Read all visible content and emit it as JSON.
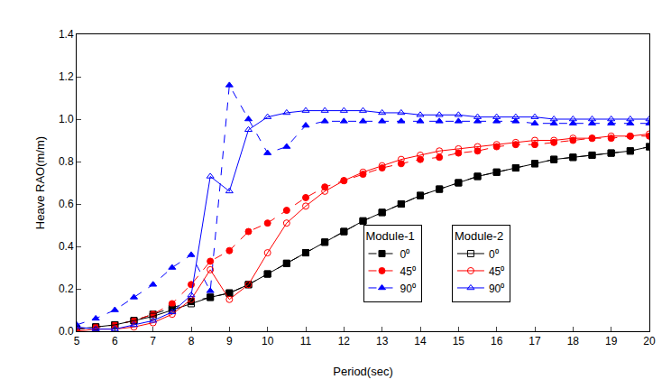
{
  "chart_data": {
    "type": "line",
    "x_label": "Period(sec)",
    "y_label": "Heave RAO(m/m)",
    "x": [
      5,
      5.5,
      6,
      6.5,
      7,
      7.5,
      8,
      8.5,
      9,
      9.5,
      10,
      10.5,
      11,
      11.5,
      12,
      12.5,
      13,
      13.5,
      14,
      14.5,
      15,
      15.5,
      16,
      16.5,
      17,
      17.5,
      18,
      18.5,
      19,
      19.5,
      20
    ],
    "xlim": [
      5,
      20
    ],
    "xticks": [
      5,
      6,
      7,
      8,
      9,
      10,
      11,
      12,
      13,
      14,
      15,
      16,
      17,
      18,
      19,
      20
    ],
    "ylim": [
      0,
      1.4
    ],
    "yticks": [
      {
        "value": 0,
        "label": "0.0"
      },
      0.2,
      0.4,
      0.6,
      0.8,
      {
        "value": 1,
        "label": "1.0"
      },
      1.2,
      1.4
    ],
    "grid": false,
    "series": [
      {
        "group": "Module-1",
        "name": "0⁰",
        "color": "#000000",
        "marker": "square",
        "line_style": "dash",
        "values": [
          0.01,
          0.02,
          0.03,
          0.05,
          0.08,
          0.11,
          0.14,
          0.16,
          0.18,
          0.22,
          0.27,
          0.32,
          0.37,
          0.42,
          0.47,
          0.52,
          0.56,
          0.6,
          0.64,
          0.67,
          0.7,
          0.73,
          0.75,
          0.77,
          0.79,
          0.81,
          0.82,
          0.83,
          0.84,
          0.85,
          0.87
        ]
      },
      {
        "group": "Module-1",
        "name": "45⁰",
        "color": "#ff0000",
        "marker": "circle",
        "line_style": "dash",
        "values": [
          0.01,
          0.02,
          0.03,
          0.05,
          0.08,
          0.13,
          0.22,
          0.33,
          0.38,
          0.47,
          0.51,
          0.57,
          0.63,
          0.68,
          0.71,
          0.74,
          0.77,
          0.79,
          0.81,
          0.82,
          0.84,
          0.85,
          0.87,
          0.88,
          0.88,
          0.89,
          0.9,
          0.91,
          0.91,
          0.92,
          0.92
        ]
      },
      {
        "group": "Module-1",
        "name": "90⁰",
        "color": "#0000ff",
        "marker": "triangle-up",
        "line_style": "dash",
        "values": [
          0.03,
          0.06,
          0.1,
          0.16,
          0.22,
          0.3,
          0.36,
          0.19,
          1.16,
          1.0,
          0.84,
          0.87,
          0.97,
          0.99,
          0.99,
          0.99,
          0.99,
          0.99,
          0.99,
          0.99,
          0.99,
          0.99,
          0.99,
          0.99,
          0.98,
          0.98,
          0.98,
          0.98,
          0.98,
          0.98,
          0.98
        ]
      },
      {
        "group": "Module-2",
        "name": "0⁰",
        "color": "#000000",
        "marker": "square-open",
        "line_style": "solid",
        "values": [
          0.01,
          0.02,
          0.03,
          0.05,
          0.07,
          0.1,
          0.13,
          0.16,
          0.18,
          0.22,
          0.27,
          0.32,
          0.37,
          0.42,
          0.47,
          0.52,
          0.56,
          0.6,
          0.64,
          0.67,
          0.7,
          0.73,
          0.75,
          0.77,
          0.79,
          0.81,
          0.82,
          0.83,
          0.84,
          0.85,
          0.87
        ]
      },
      {
        "group": "Module-2",
        "name": "45⁰",
        "color": "#ff0000",
        "marker": "circle-open",
        "line_style": "solid",
        "values": [
          0.0,
          0.01,
          0.01,
          0.02,
          0.04,
          0.08,
          0.15,
          0.29,
          0.15,
          0.22,
          0.37,
          0.51,
          0.59,
          0.66,
          0.71,
          0.75,
          0.78,
          0.81,
          0.83,
          0.85,
          0.86,
          0.87,
          0.88,
          0.89,
          0.9,
          0.9,
          0.91,
          0.91,
          0.92,
          0.92,
          0.93
        ]
      },
      {
        "group": "Module-2",
        "name": "90⁰",
        "color": "#0000ff",
        "marker": "triangle-up-open",
        "line_style": "solid",
        "values": [
          0.02,
          0.01,
          0.01,
          0.03,
          0.05,
          0.09,
          0.17,
          0.73,
          0.66,
          0.95,
          1.01,
          1.03,
          1.04,
          1.04,
          1.04,
          1.04,
          1.03,
          1.03,
          1.02,
          1.02,
          1.02,
          1.01,
          1.01,
          1.01,
          1.01,
          1.0,
          1.0,
          1.0,
          1.0,
          1.0,
          1.0
        ]
      }
    ]
  }
}
